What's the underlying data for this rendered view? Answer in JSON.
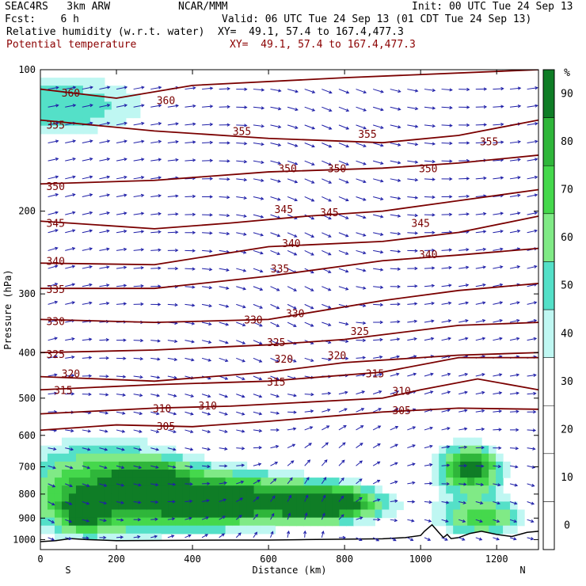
{
  "header": {
    "project": "SEAC4RS   3km ARW",
    "producer": "NCAR/MMM",
    "init": "Init: 00 UTC Tue 24 Sep 13",
    "fcst": "Fcst:    6 h",
    "valid": "Valid: 06 UTC Tue 24 Sep 13 (01 CDT Tue 24 Sep 13)",
    "field1": "Relative humidity (w.r.t. water)",
    "field1_xy": "XY=  49.1, 57.4 to 167.4,477.3",
    "field2": "Potential temperature",
    "field2_xy": "XY=  49.1, 57.4 to 167.4,477.3"
  },
  "colors": {
    "theta": "#7a0000",
    "wind": "#1f1fa8",
    "terrain": "#000000",
    "rh_fill": [
      "#ffffff",
      "#ffffff",
      "#ffffff",
      "#ffffff",
      "#bff7f2",
      "#54e0c8",
      "#80ea86",
      "#45d84c",
      "#2fb63a",
      "#0f7d26"
    ]
  },
  "chart_data": {
    "type": "heatmap",
    "xlabel": "Distance (km)",
    "ylabel": "Pressure (hPa)",
    "xlim": [
      0,
      1310
    ],
    "ylim": [
      100,
      1050
    ],
    "y_scale": "log",
    "x_ticks": [
      "0",
      "200",
      "400",
      "600",
      "800",
      "1000",
      "1200"
    ],
    "y_ticks": [
      "100",
      "200",
      "300",
      "400",
      "500",
      "600",
      "700",
      "800",
      "900",
      "1000"
    ],
    "end_labels": {
      "left": "S",
      "right": "N"
    },
    "colorbar": {
      "unit": "%",
      "labels": [
        "90",
        "80",
        "70",
        "60",
        "50",
        "40",
        "30",
        "20",
        "10",
        "0"
      ],
      "levels": [
        0,
        10,
        20,
        30,
        40,
        50,
        60,
        70,
        80,
        90,
        100
      ]
    },
    "rh_regions": [
      {
        "name": "upper-moist-band",
        "x": [
          0,
          420
        ],
        "p": [
          100,
          160
        ],
        "rh": [
          35,
          80
        ]
      },
      {
        "name": "low-level-moist-layer",
        "x": [
          60,
          960
        ],
        "p": [
          650,
          1000
        ],
        "rh": [
          60,
          95
        ]
      },
      {
        "name": "moist-column",
        "x": [
          980,
          1310
        ],
        "p": [
          600,
          1000
        ],
        "rh": [
          40,
          90
        ]
      }
    ],
    "theta_contours": [
      {
        "value": 360,
        "points": [
          [
            0,
            110
          ],
          [
            200,
            115
          ],
          [
            400,
            108
          ],
          [
            800,
            104
          ],
          [
            1310,
            100
          ]
        ]
      },
      {
        "value": 355,
        "points": [
          [
            0,
            128
          ],
          [
            300,
            135
          ],
          [
            600,
            140
          ],
          [
            900,
            143
          ],
          [
            1100,
            138
          ],
          [
            1310,
            128
          ]
        ]
      },
      {
        "value": 350,
        "points": [
          [
            0,
            175
          ],
          [
            300,
            172
          ],
          [
            600,
            165
          ],
          [
            900,
            162
          ],
          [
            1100,
            158
          ],
          [
            1310,
            152
          ]
        ]
      },
      {
        "value": 345,
        "points": [
          [
            0,
            210
          ],
          [
            300,
            218
          ],
          [
            500,
            212
          ],
          [
            700,
            205
          ],
          [
            900,
            200
          ],
          [
            1100,
            190
          ],
          [
            1310,
            180
          ]
        ]
      },
      {
        "value": 340,
        "points": [
          [
            0,
            258
          ],
          [
            300,
            260
          ],
          [
            600,
            238
          ],
          [
            900,
            232
          ],
          [
            1100,
            222
          ],
          [
            1310,
            205
          ]
        ]
      },
      {
        "value": 335,
        "points": [
          [
            0,
            292
          ],
          [
            300,
            292
          ],
          [
            600,
            275
          ],
          [
            900,
            255
          ],
          [
            1100,
            248
          ],
          [
            1310,
            240
          ]
        ]
      },
      {
        "value": 330,
        "points": [
          [
            0,
            340
          ],
          [
            300,
            345
          ],
          [
            600,
            340
          ],
          [
            900,
            310
          ],
          [
            1100,
            295
          ],
          [
            1310,
            285
          ]
        ]
      },
      {
        "value": 325,
        "points": [
          [
            0,
            400
          ],
          [
            300,
            395
          ],
          [
            600,
            385
          ],
          [
            800,
            375
          ],
          [
            1100,
            350
          ],
          [
            1310,
            345
          ]
        ]
      },
      {
        "value": 320,
        "points": [
          [
            0,
            450
          ],
          [
            300,
            460
          ],
          [
            600,
            440
          ],
          [
            800,
            420
          ],
          [
            1100,
            405
          ],
          [
            1310,
            400
          ]
        ]
      },
      {
        "value": 315,
        "points": [
          [
            0,
            480
          ],
          [
            300,
            468
          ],
          [
            600,
            460
          ],
          [
            900,
            440
          ],
          [
            1100,
            410
          ],
          [
            1310,
            410
          ]
        ]
      },
      {
        "value": 310,
        "points": [
          [
            0,
            540
          ],
          [
            300,
            525
          ],
          [
            500,
            520
          ],
          [
            900,
            500
          ],
          [
            1000,
            480
          ],
          [
            1150,
            455
          ],
          [
            1310,
            480
          ]
        ]
      },
      {
        "value": 305,
        "points": [
          [
            0,
            585
          ],
          [
            200,
            570
          ],
          [
            400,
            575
          ],
          [
            600,
            560
          ],
          [
            900,
            535
          ],
          [
            1100,
            525
          ],
          [
            1310,
            528
          ]
        ]
      }
    ],
    "contour_labels": [
      {
        "text": "360",
        "x": 80,
        "p": 112
      },
      {
        "text": "360",
        "x": 330,
        "p": 116
      },
      {
        "text": "355",
        "x": 40,
        "p": 131
      },
      {
        "text": "355",
        "x": 530,
        "p": 135
      },
      {
        "text": "355",
        "x": 860,
        "p": 137
      },
      {
        "text": "355",
        "x": 1180,
        "p": 142
      },
      {
        "text": "350",
        "x": 40,
        "p": 177
      },
      {
        "text": "350",
        "x": 650,
        "p": 162
      },
      {
        "text": "350",
        "x": 780,
        "p": 162
      },
      {
        "text": "350",
        "x": 1020,
        "p": 162
      },
      {
        "text": "345",
        "x": 40,
        "p": 212
      },
      {
        "text": "345",
        "x": 640,
        "p": 198
      },
      {
        "text": "345",
        "x": 760,
        "p": 201
      },
      {
        "text": "345",
        "x": 1000,
        "p": 212
      },
      {
        "text": "340",
        "x": 40,
        "p": 255
      },
      {
        "text": "340",
        "x": 660,
        "p": 234
      },
      {
        "text": "340",
        "x": 1020,
        "p": 247
      },
      {
        "text": "335",
        "x": 40,
        "p": 293
      },
      {
        "text": "335",
        "x": 630,
        "p": 265
      },
      {
        "text": "330",
        "x": 40,
        "p": 343
      },
      {
        "text": "330",
        "x": 560,
        "p": 340
      },
      {
        "text": "330",
        "x": 670,
        "p": 330
      },
      {
        "text": "325",
        "x": 840,
        "p": 360
      },
      {
        "text": "325",
        "x": 40,
        "p": 403
      },
      {
        "text": "325",
        "x": 620,
        "p": 380
      },
      {
        "text": "320",
        "x": 80,
        "p": 443
      },
      {
        "text": "320",
        "x": 640,
        "p": 412
      },
      {
        "text": "320",
        "x": 780,
        "p": 405
      },
      {
        "text": "315",
        "x": 60,
        "p": 480
      },
      {
        "text": "315",
        "x": 620,
        "p": 461
      },
      {
        "text": "315",
        "x": 880,
        "p": 443
      },
      {
        "text": "310",
        "x": 320,
        "p": 525
      },
      {
        "text": "310",
        "x": 440,
        "p": 518
      },
      {
        "text": "310",
        "x": 950,
        "p": 482
      },
      {
        "text": "305",
        "x": 330,
        "p": 573
      },
      {
        "text": "305",
        "x": 950,
        "p": 530
      }
    ],
    "terrain_profile": [
      [
        0,
        1010
      ],
      [
        40,
        1005
      ],
      [
        80,
        995
      ],
      [
        120,
        1000
      ],
      [
        160,
        1002
      ],
      [
        200,
        1005
      ],
      [
        300,
        1004
      ],
      [
        400,
        1003
      ],
      [
        500,
        1002
      ],
      [
        600,
        1002
      ],
      [
        700,
        1000
      ],
      [
        800,
        998
      ],
      [
        900,
        996
      ],
      [
        960,
        990
      ],
      [
        1000,
        980
      ],
      [
        1010,
        960
      ],
      [
        1030,
        930
      ],
      [
        1050,
        970
      ],
      [
        1060,
        990
      ],
      [
        1070,
        975
      ],
      [
        1080,
        995
      ],
      [
        1100,
        990
      ],
      [
        1130,
        970
      ],
      [
        1160,
        960
      ],
      [
        1200,
        975
      ],
      [
        1240,
        985
      ],
      [
        1280,
        965
      ],
      [
        1310,
        960
      ]
    ]
  }
}
